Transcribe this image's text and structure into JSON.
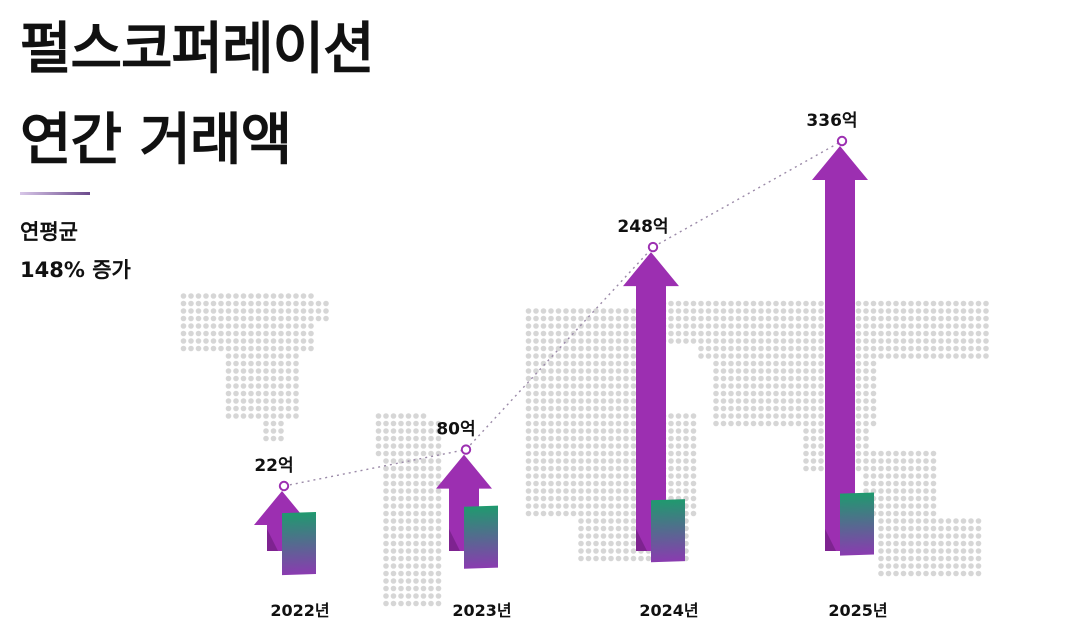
{
  "header": {
    "title_line1": "펄스코퍼레이션",
    "title_line2": "연간 거래액"
  },
  "summary": {
    "label": "연평균",
    "value": "148% 증가"
  },
  "chart_data": {
    "type": "bar",
    "categories": [
      "2022년",
      "2023년",
      "2024년",
      "2025년"
    ],
    "values": [
      22,
      80,
      248,
      336
    ],
    "value_labels": [
      "22억",
      "80억",
      "248억",
      "336억"
    ],
    "unit": "억",
    "title": "",
    "xlabel": "",
    "ylabel": "",
    "ylim": [
      0,
      336
    ],
    "grid": false,
    "legend": "none",
    "colors": {
      "arrow": "#9c2fb1",
      "arrow_shade": "#7e2390",
      "box_top": "#1f9a6e",
      "box_bottom": "#8a3bb0",
      "trend_line": "#9b8aa8",
      "map_dots": "#d6d6d6"
    }
  }
}
